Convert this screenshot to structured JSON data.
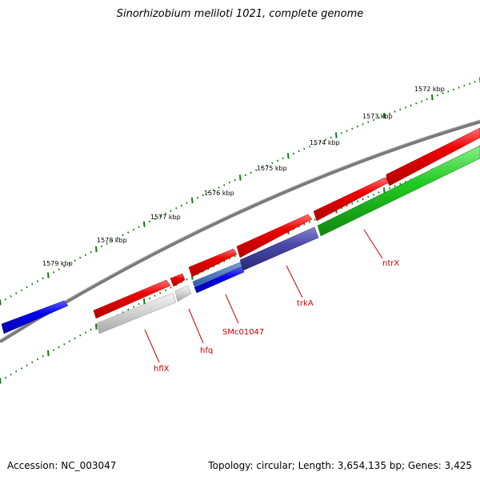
{
  "title": "Sinorhizobium meliloti 1021, complete genome",
  "accession_text": "Accession: NC_003047",
  "stats_text": "Topology: circular; Length: 3,654,135 bp; Genes: 3,425",
  "colors": {
    "backbone": "#777777",
    "tick": "#0a7a0a",
    "forward_gene": "#ee0000",
    "forward_cds": "#dddddd",
    "label": "#cc0000",
    "blue_feature": "#0000ee",
    "purple_feature": "#4a4aa8",
    "green_feature": "#22cc22"
  },
  "ruler_labels": [
    "1572 kbp",
    "1573 kbp",
    "1574 kbp",
    "1575 kbp",
    "1576 kbp",
    "1577 kbp",
    "1578 kbp",
    "1579 kbp"
  ],
  "gene_labels": [
    "ntrX",
    "trkA",
    "SMc01047",
    "hfq",
    "hflX"
  ]
}
